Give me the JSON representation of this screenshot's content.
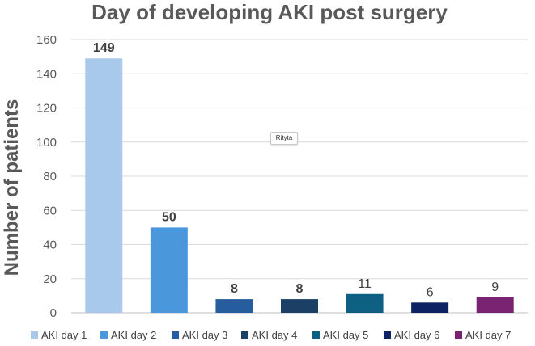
{
  "chart_data": {
    "type": "bar",
    "title": "Day of developing AKI post surgery",
    "ylabel": "Number of patients",
    "xlabel": "",
    "ylim": [
      0,
      160
    ],
    "yticks": [
      0,
      20,
      40,
      60,
      80,
      100,
      120,
      140,
      160
    ],
    "grid": true,
    "legend_position": "bottom",
    "categories": [
      "AKI day 1",
      "AKI day 2",
      "AKI day 3",
      "AKI day 4",
      "AKI day 5",
      "AKI day 6",
      "AKI day 7"
    ],
    "values": [
      149,
      50,
      8,
      8,
      11,
      6,
      9
    ],
    "colors": [
      "#a9c9ec",
      "#4a97dc",
      "#255d9e",
      "#1c3f66",
      "#0e6083",
      "#0c2262",
      "#7a2372"
    ],
    "label_bold": [
      true,
      true,
      true,
      true,
      false,
      false,
      false
    ]
  },
  "tooltip": {
    "text": "Rityta"
  }
}
